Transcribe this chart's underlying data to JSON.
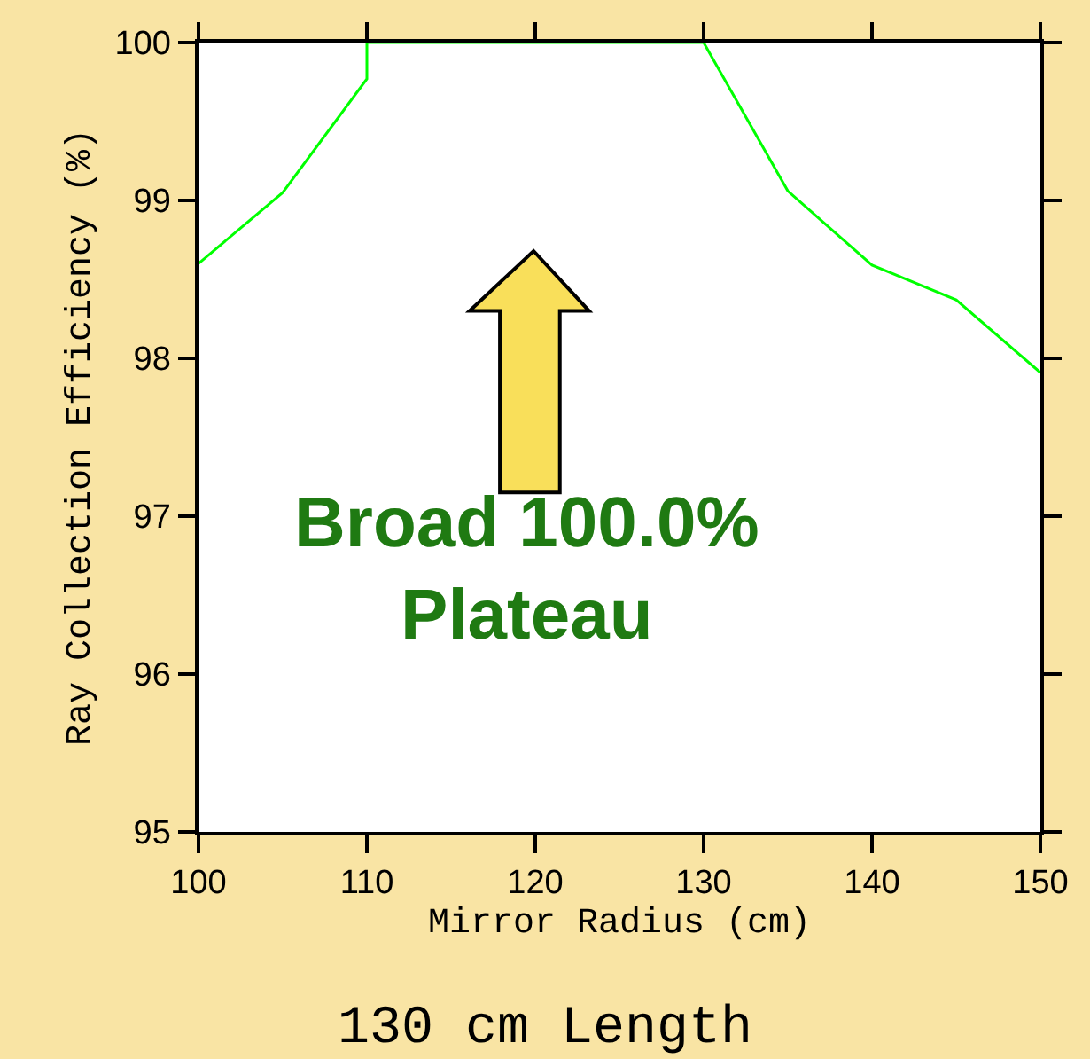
{
  "chart_data": {
    "type": "line",
    "title": "130 cm Length",
    "xlabel": "Mirror Radius (cm)",
    "ylabel": "Ray Collection Efficiency (%)",
    "x": [
      100,
      105,
      110,
      110,
      130,
      135,
      140,
      145,
      150
    ],
    "series": [
      {
        "color": "#00ff00",
        "values": [
          98.6,
          99.05,
          99.77,
          100,
          100,
          99.06,
          98.59,
          98.37,
          97.91
        ]
      }
    ],
    "xlim": [
      100,
      150
    ],
    "xticks": [
      100,
      110,
      120,
      130,
      140,
      150
    ],
    "ylim": [
      95,
      100
    ],
    "yticks": [
      95,
      96,
      97,
      98,
      99,
      100
    ],
    "annotations": [
      "Broad 100.0%\nPlateau"
    ],
    "marker": "none",
    "line_style": "solid"
  }
}
